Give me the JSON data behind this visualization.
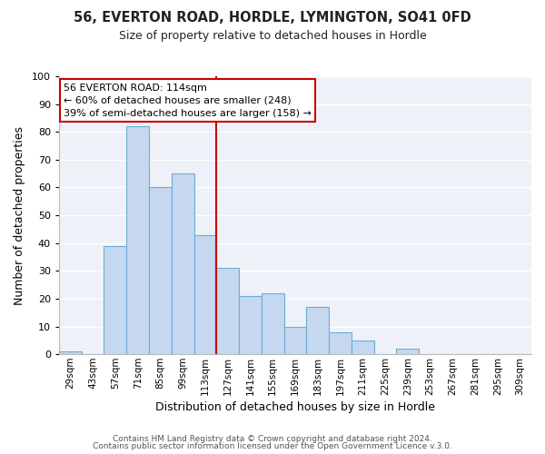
{
  "title": "56, EVERTON ROAD, HORDLE, LYMINGTON, SO41 0FD",
  "subtitle": "Size of property relative to detached houses in Hordle",
  "xlabel": "Distribution of detached houses by size in Hordle",
  "ylabel": "Number of detached properties",
  "bar_color": "#c5d8ef",
  "bar_edge_color": "#6aaed6",
  "background_color": "#eef2f8",
  "categories": [
    "29sqm",
    "43sqm",
    "57sqm",
    "71sqm",
    "85sqm",
    "99sqm",
    "113sqm",
    "127sqm",
    "141sqm",
    "155sqm",
    "169sqm",
    "183sqm",
    "197sqm",
    "211sqm",
    "225sqm",
    "239sqm",
    "253sqm",
    "267sqm",
    "281sqm",
    "295sqm",
    "309sqm"
  ],
  "values": [
    1,
    0,
    39,
    82,
    60,
    65,
    43,
    31,
    21,
    22,
    10,
    17,
    8,
    5,
    0,
    2,
    0,
    0,
    0,
    0,
    0
  ],
  "vline_index": 6,
  "vline_color": "#cc0000",
  "annotation_line1": "56 EVERTON ROAD: 114sqm",
  "annotation_line2": "← 60% of detached houses are smaller (248)",
  "annotation_line3": "39% of semi-detached houses are larger (158) →",
  "annotation_box_color": "#ffffff",
  "annotation_box_edge": "#cc0000",
  "ylim": [
    0,
    100
  ],
  "yticks": [
    0,
    10,
    20,
    30,
    40,
    50,
    60,
    70,
    80,
    90,
    100
  ],
  "footer1": "Contains HM Land Registry data © Crown copyright and database right 2024.",
  "footer2": "Contains public sector information licensed under the Open Government Licence v.3.0.",
  "grid_color": "#ffffff",
  "spine_color": "#bbbbbb"
}
